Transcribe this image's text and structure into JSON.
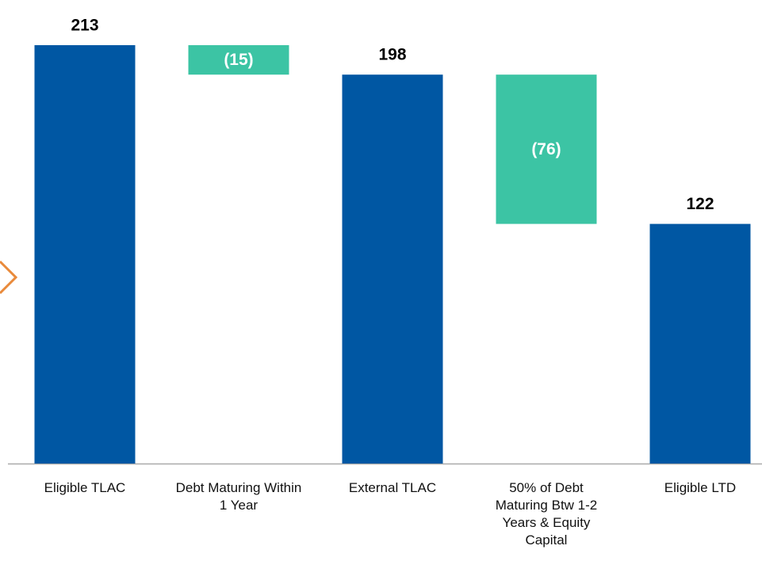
{
  "chart_data": {
    "type": "waterfall",
    "categories": [
      "Eligible TLAC",
      "Debt Maturing Within 1 Year",
      "External TLAC",
      "50% of Debt Maturing Btw 1-2 Years & Equity Capital",
      "Eligible LTD"
    ],
    "values": [
      213,
      -15,
      198,
      -76,
      122
    ],
    "value_labels": [
      null,
      "(15)",
      null,
      "(76)",
      null
    ],
    "colors": [
      "#0057a3",
      "#3cc4a4",
      "#0057a3",
      "#3cc4a4",
      "#0057a3"
    ]
  }
}
